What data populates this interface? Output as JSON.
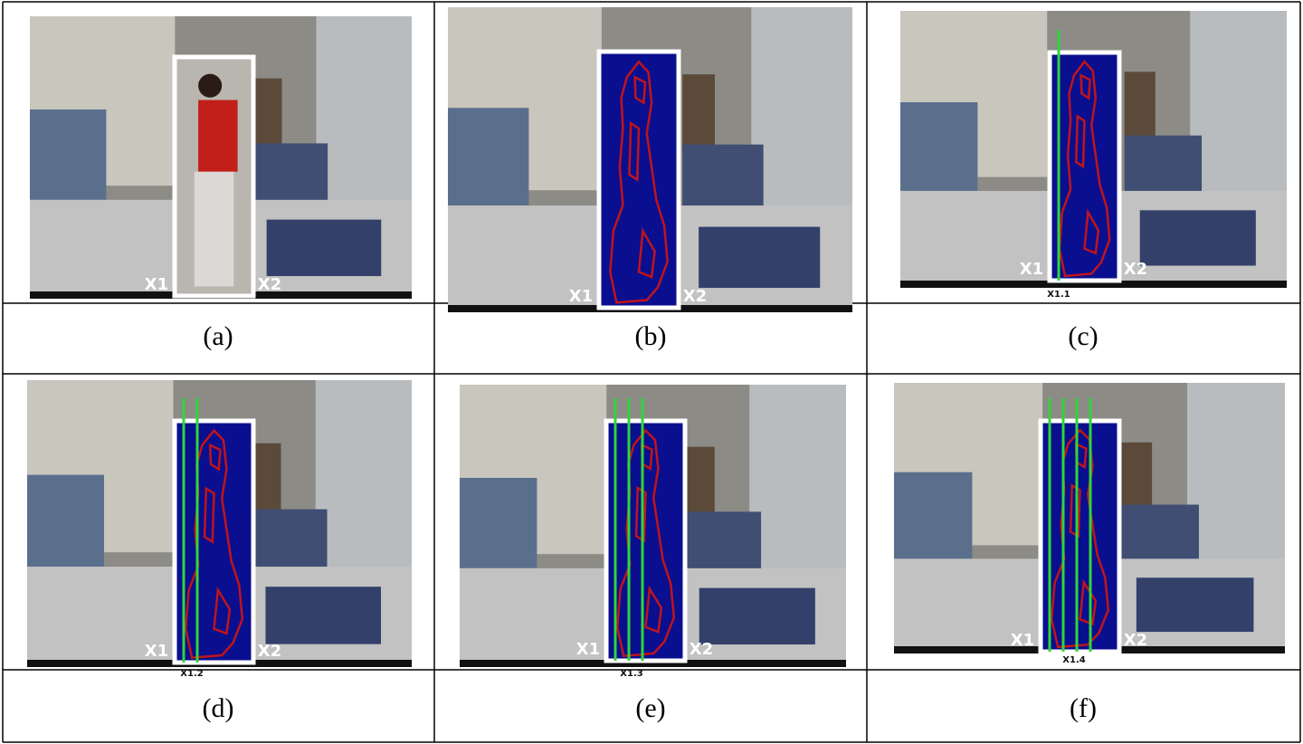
{
  "panels": [
    {
      "caption": "(a)",
      "labels": [
        "X1",
        "X2"
      ]
    },
    {
      "caption": "(b)",
      "labels": [
        "X1",
        "X2"
      ]
    },
    {
      "caption": "(c)",
      "labels": [
        "X1",
        "X2"
      ],
      "line_label": "X1.1"
    },
    {
      "caption": "(d)",
      "labels": [
        "X1",
        "X2"
      ],
      "line_label": "X1.2"
    },
    {
      "caption": "(e)",
      "labels": [
        "X1",
        "X2"
      ],
      "line_label": "X1.3"
    },
    {
      "caption": "(f)",
      "labels": [
        "X1",
        "X2"
      ],
      "line_label": "X1.4"
    }
  ]
}
